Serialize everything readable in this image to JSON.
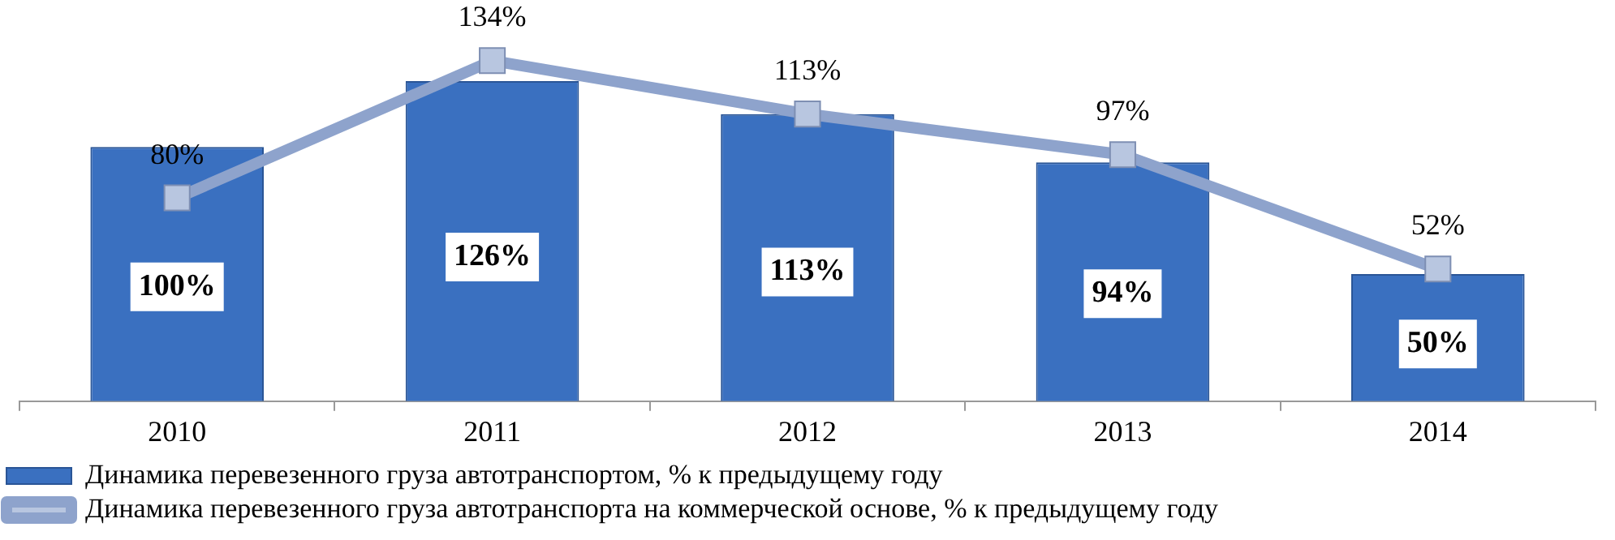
{
  "chart_data": {
    "type": "bar",
    "categories": [
      "2010",
      "2011",
      "2012",
      "2013",
      "2014"
    ],
    "series": [
      {
        "name": "Динамика перевезенного груза автотранспортом, % к предыдущему году",
        "color": "#3a70c0",
        "values": [
          100,
          126,
          113,
          94,
          50
        ],
        "value_labels": [
          "100%",
          "126%",
          "113%",
          "94%",
          "50%"
        ]
      },
      {
        "name": "Динамика перевезенного груза автотранспорта на коммерческой основе, % к предыдущему году",
        "type": "line",
        "color": "#8ea3cc",
        "values": [
          80,
          134,
          113,
          97,
          52
        ],
        "value_labels": [
          "80%",
          "134%",
          "113%",
          "97%",
          "52%"
        ]
      }
    ],
    "tick_labels": "x",
    "legend": "bottom",
    "marker": "square",
    "grid": false,
    "line_style": "solid"
  }
}
